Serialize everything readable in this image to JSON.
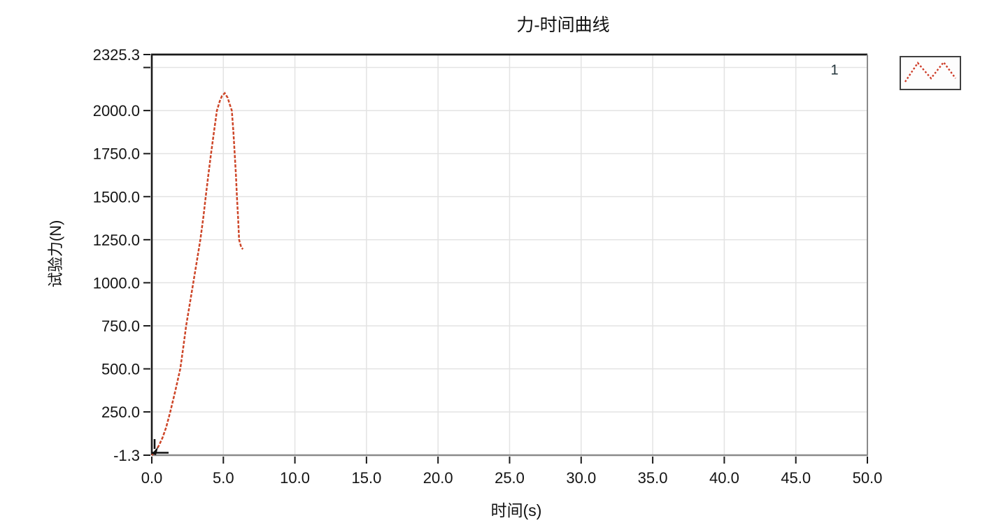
{
  "title": "力-时间曲线",
  "axes": {
    "x": {
      "label": "时间(s)"
    },
    "y": {
      "label": "试验力(N)"
    }
  },
  "legend": {
    "series_label": "1"
  },
  "colors": {
    "curve": "#cd4527",
    "grid": "#e3e3e3",
    "axis_dark": "#1a1a1a",
    "axis_gray": "#8a8a8a",
    "text": "#141414",
    "background": "#ffffff"
  },
  "chart_data": {
    "type": "line",
    "title": "力-时间曲线",
    "xlabel": "时间(s)",
    "ylabel": "试验力(N)",
    "xlim": [
      0,
      50
    ],
    "ylim": [
      -1.3,
      2325.3
    ],
    "x_ticks": [
      0,
      5,
      10,
      15,
      20,
      25,
      30,
      35,
      40,
      45,
      50
    ],
    "x_gridlines": [
      5,
      10,
      15,
      20,
      25,
      30,
      35,
      40,
      45
    ],
    "y_ticks_labeled": [
      -1.3,
      250,
      500,
      750,
      1000,
      1250,
      1500,
      1750,
      2000,
      2325.3
    ],
    "y_ticks_unlabeled": [
      2250
    ],
    "y_gridlines": [
      250,
      500,
      750,
      1000,
      1250,
      1500,
      1750,
      2000,
      2250
    ],
    "grid": true,
    "legend_position": "outside-top-right",
    "series": [
      {
        "name": "1",
        "color": "#cd4527",
        "style": "dashed",
        "points": [
          [
            0,
            -1.3
          ],
          [
            0.25,
            20
          ],
          [
            0.5,
            55
          ],
          [
            0.75,
            100
          ],
          [
            1.0,
            160
          ],
          [
            1.29,
            250
          ],
          [
            1.65,
            375
          ],
          [
            1.99,
            500
          ],
          [
            2.2,
            625
          ],
          [
            2.4,
            750
          ],
          [
            2.65,
            875
          ],
          [
            2.9,
            1000
          ],
          [
            3.15,
            1125
          ],
          [
            3.39,
            1250
          ],
          [
            3.6,
            1380
          ],
          [
            3.77,
            1500
          ],
          [
            3.95,
            1625
          ],
          [
            4.14,
            1750
          ],
          [
            4.35,
            1880
          ],
          [
            4.55,
            2000
          ],
          [
            4.75,
            2055
          ],
          [
            4.9,
            2085
          ],
          [
            5.1,
            2101
          ],
          [
            5.3,
            2075
          ],
          [
            5.45,
            2035
          ],
          [
            5.59,
            2000
          ],
          [
            5.7,
            1880
          ],
          [
            5.79,
            1750
          ],
          [
            5.88,
            1625
          ],
          [
            5.95,
            1500
          ],
          [
            6.03,
            1375
          ],
          [
            6.1,
            1250
          ],
          [
            6.25,
            1205
          ],
          [
            6.37,
            1195
          ]
        ]
      }
    ],
    "peak_value": 2101,
    "peak_time": 5.1
  }
}
